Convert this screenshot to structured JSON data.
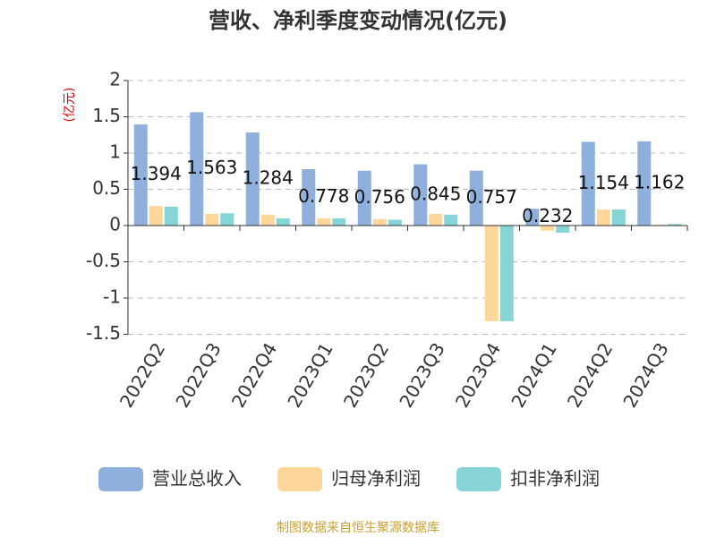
{
  "chart_data": {
    "type": "bar",
    "title": "营收、净利季度变动情况(亿元)",
    "y_label": "(亿元)",
    "source": "制图数据来自恒生聚源数据库",
    "categories": [
      "2022Q2",
      "2022Q3",
      "2022Q4",
      "2023Q1",
      "2023Q2",
      "2023Q3",
      "2023Q4",
      "2024Q1",
      "2024Q2",
      "2024Q3"
    ],
    "series": [
      {
        "name": "营业总收入",
        "color": "#8fb0dc",
        "values": [
          1.394,
          1.563,
          1.284,
          0.778,
          0.756,
          0.845,
          0.757,
          0.232,
          1.154,
          1.162
        ],
        "show_labels": true
      },
      {
        "name": "归母净利润",
        "color": "#fdd69a",
        "values": [
          0.27,
          0.16,
          0.15,
          0.1,
          0.09,
          0.16,
          -1.32,
          -0.07,
          0.22,
          0.01
        ]
      },
      {
        "name": "扣非净利润",
        "color": "#86d4d6",
        "values": [
          0.26,
          0.17,
          0.1,
          0.1,
          0.08,
          0.15,
          -1.32,
          -0.1,
          0.22,
          0.02
        ]
      }
    ],
    "ylim": [
      -1.5,
      2
    ],
    "yticks": [
      -1.5,
      -1,
      -0.5,
      0,
      0.5,
      1,
      1.5,
      2
    ],
    "grid": true,
    "legend": "bottom"
  }
}
